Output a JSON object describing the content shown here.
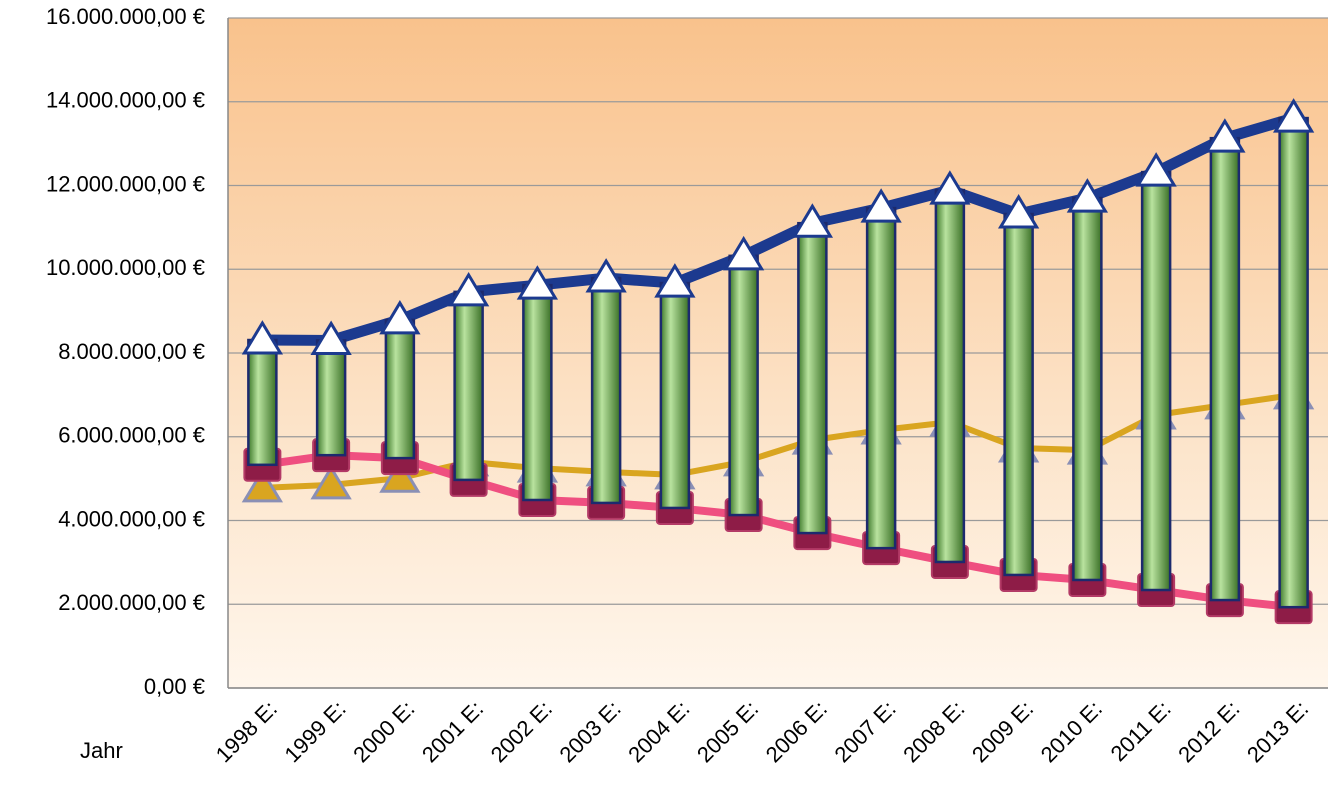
{
  "chart_data": {
    "type": "line",
    "x_label": "Jahr",
    "categories": [
      "1998 E:",
      "1999 E:",
      "2000 E:",
      "2001 E:",
      "2002 E:",
      "2003 E:",
      "2004 E:",
      "2005 E:",
      "2006 E:",
      "2007 E:",
      "2008 E:",
      "2009 E:",
      "2010 E:",
      "2011 E:",
      "2012 E:",
      "2013 E:"
    ],
    "series": [
      {
        "color": "#1c3a8f",
        "marker": "triangle",
        "values": [
          8310000,
          8300000,
          8790000,
          9460000,
          9620000,
          9790000,
          9670000,
          10320000,
          11100000,
          11460000,
          11890000,
          11320000,
          11700000,
          12320000,
          13130000,
          13610000
        ]
      },
      {
        "color": "#ef4f80",
        "marker": "square",
        "values": [
          5330000,
          5560000,
          5490000,
          4970000,
          4490000,
          4420000,
          4300000,
          4130000,
          3700000,
          3340000,
          3010000,
          2700000,
          2580000,
          2340000,
          2100000,
          1930000
        ]
      },
      {
        "color": "#d9a520",
        "marker": "triangle",
        "values": [
          4780000,
          4850000,
          5010000,
          5400000,
          5250000,
          5160000,
          5090000,
          5400000,
          5920000,
          6160000,
          6350000,
          5730000,
          5680000,
          6520000,
          6760000,
          7000000
        ]
      }
    ],
    "bars": {
      "from_series": 1,
      "to_series": 0,
      "color": "#6fae55"
    },
    "ylim": [
      0,
      16000000
    ],
    "yticks": [
      {
        "value": 0,
        "label": "0,00 €"
      },
      {
        "value": 2000000,
        "label": "2.000.000,00 €"
      },
      {
        "value": 4000000,
        "label": "4.000.000,00 €"
      },
      {
        "value": 6000000,
        "label": "6.000.000,00 €"
      },
      {
        "value": 8000000,
        "label": "8.000.000,00 €"
      },
      {
        "value": 10000000,
        "label": "10.000.000,00 €"
      },
      {
        "value": 12000000,
        "label": "12.000.000,00 €"
      },
      {
        "value": 14000000,
        "label": "14.000.000,00 €"
      },
      {
        "value": 16000000,
        "label": "16.000.000,00 €"
      }
    ],
    "grid": true
  }
}
